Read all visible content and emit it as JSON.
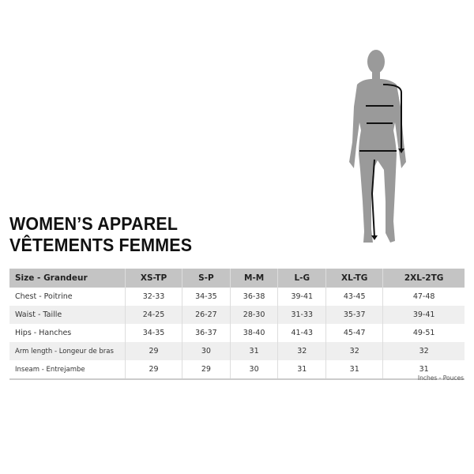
{
  "title": {
    "line1": "WOMEN’S APPAREL",
    "line2": "VÊTEMENTS FEMMES"
  },
  "table": {
    "headers": [
      "Size - Grandeur",
      "XS-TP",
      "S-P",
      "M-M",
      "L-G",
      "XL-TG",
      "2XL-2TG"
    ],
    "rows": [
      {
        "label": "Chest - Poitrine",
        "values": [
          "32-33",
          "34-35",
          "36-38",
          "39-41",
          "43-45",
          "47-48"
        ]
      },
      {
        "label": "Waist - Taille",
        "values": [
          "24-25",
          "26-27",
          "28-30",
          "31-33",
          "35-37",
          "39-41"
        ]
      },
      {
        "label": "Hips - Hanches",
        "values": [
          "34-35",
          "36-37",
          "38-40",
          "41-43",
          "45-47",
          "49-51"
        ]
      },
      {
        "label": "Arm length - Longeur de bras",
        "values": [
          "29",
          "30",
          "31",
          "32",
          "32",
          "32"
        ]
      },
      {
        "label": "Inseam - Entrejambe",
        "values": [
          "29",
          "29",
          "30",
          "31",
          "31",
          "31"
        ]
      }
    ]
  },
  "units": "Inches - Pouces",
  "colors": {
    "header_bg": "#c4c4c4",
    "alt_row": "#efefef",
    "silhouette": "#9a9a9a"
  }
}
